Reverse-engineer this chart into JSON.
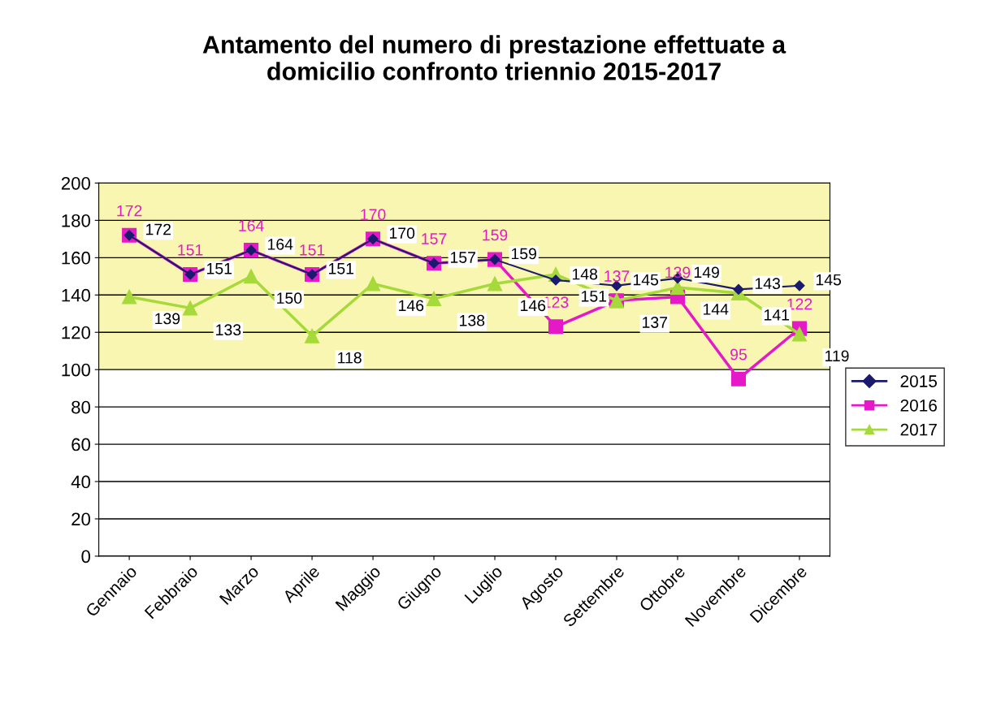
{
  "chart_data": {
    "type": "line",
    "title": "Antamento del numero di prestazione effettuate a\ndomicilio confronto triennio 2015-2017",
    "categories": [
      "Gennaio",
      "Febbraio",
      "Marzo",
      "Aprile",
      "Maggio",
      "Giugno",
      "Luglio",
      "Agosto",
      "Settembre",
      "Ottobre",
      "Novembre",
      "Dicembre"
    ],
    "series": [
      {
        "name": "2015",
        "color": "#1a1a6e",
        "marker": "diamond",
        "values": [
          172,
          151,
          164,
          151,
          170,
          157,
          159,
          148,
          145,
          149,
          143,
          145
        ]
      },
      {
        "name": "2016",
        "color": "#e619c8",
        "marker": "square",
        "values": [
          172,
          151,
          164,
          151,
          170,
          157,
          159,
          123,
          137,
          139,
          95,
          122
        ]
      },
      {
        "name": "2017",
        "color": "#a6d93a",
        "marker": "triangle",
        "values": [
          139,
          133,
          150,
          118,
          146,
          138,
          146,
          151,
          137,
          144,
          141,
          119
        ]
      }
    ],
    "ylim": [
      0,
      200
    ],
    "yticks": [
      0,
      20,
      40,
      60,
      80,
      100,
      120,
      140,
      160,
      180,
      200
    ],
    "bands": [
      {
        "axis": "y",
        "from": 100,
        "to": 200,
        "color": "#f8f6b0"
      }
    ],
    "grid": "y",
    "legend": "right",
    "data_labels": true
  }
}
